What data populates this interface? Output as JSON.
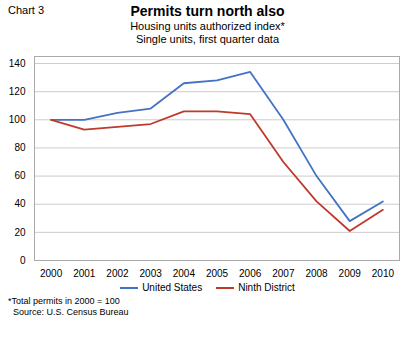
{
  "chart_data": {
    "type": "line",
    "title": "Permits turn north also",
    "subtitle": [
      "Housing units authorized index*",
      "Single units, first quarter data"
    ],
    "annotations": [
      "Chart 3",
      "*Total permits in 2000 = 100",
      "  Source: U.S. Census Bureau"
    ],
    "x": [
      2000,
      2001,
      2002,
      2003,
      2004,
      2005,
      2006,
      2007,
      2008,
      2009,
      2010
    ],
    "series": [
      {
        "name": "United States",
        "color": "#4472C4",
        "values": [
          100,
          100,
          105,
          108,
          126,
          128,
          134,
          100,
          60,
          28,
          42
        ]
      },
      {
        "name": "Ninth District",
        "color": "#C0392B",
        "values": [
          100,
          93,
          95,
          97,
          106,
          106,
          104,
          70,
          42,
          21,
          36
        ]
      }
    ],
    "xlim": [
      1999.5,
      2010.5
    ],
    "xticks": [
      2000,
      2001,
      2002,
      2003,
      2004,
      2005,
      2006,
      2007,
      2008,
      2009,
      2010
    ],
    "ylim": [
      0,
      145
    ],
    "yticks": [
      0,
      20,
      40,
      60,
      80,
      100,
      120,
      140
    ],
    "grid": true,
    "legend": "bottom"
  }
}
